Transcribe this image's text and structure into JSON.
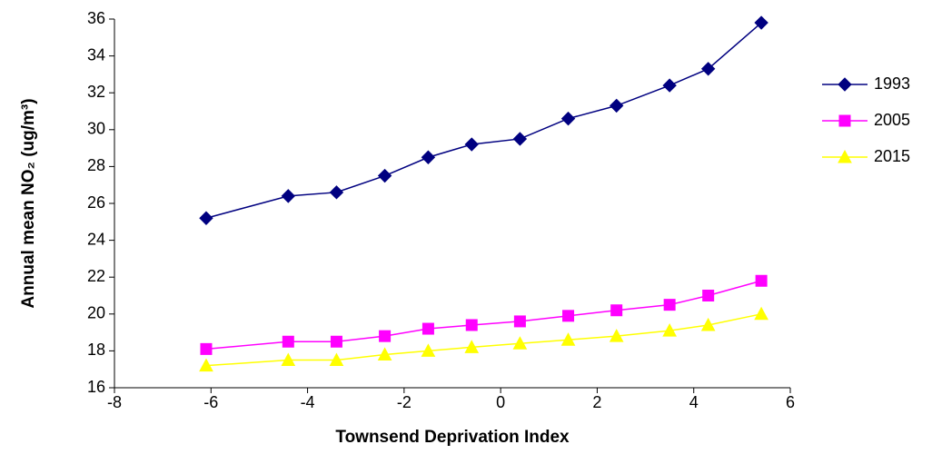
{
  "chart_data": {
    "type": "line",
    "x_label": "Townsend Deprivation Index",
    "y_label": "Annual mean NO₂ (ug/m³)",
    "x": [
      -6.1,
      -4.4,
      -3.4,
      -2.4,
      -1.5,
      -0.6,
      0.4,
      1.4,
      2.4,
      3.5,
      4.3,
      5.4
    ],
    "series": [
      {
        "name": "1993",
        "color": "#000080",
        "marker": "diamond",
        "values": [
          25.2,
          26.4,
          26.6,
          27.5,
          28.5,
          29.2,
          29.5,
          30.6,
          31.3,
          32.4,
          33.3,
          35.8
        ]
      },
      {
        "name": "2005",
        "color": "#ff00ff",
        "marker": "square",
        "values": [
          18.1,
          18.5,
          18.5,
          18.8,
          19.2,
          19.4,
          19.6,
          19.9,
          20.2,
          20.5,
          21.0,
          21.8
        ]
      },
      {
        "name": "2015",
        "color": "#ffff00",
        "marker": "triangle",
        "values": [
          17.2,
          17.5,
          17.5,
          17.8,
          18.0,
          18.2,
          18.4,
          18.6,
          18.8,
          19.1,
          19.4,
          20.0
        ]
      }
    ],
    "xlim": [
      -8,
      6
    ],
    "xticks": [
      -8,
      -6,
      -4,
      -2,
      0,
      2,
      4,
      6
    ],
    "ylim": [
      16,
      36
    ],
    "yticks": [
      16,
      18,
      20,
      22,
      24,
      26,
      28,
      30,
      32,
      34,
      36
    ],
    "grid": false,
    "legend": "right"
  }
}
